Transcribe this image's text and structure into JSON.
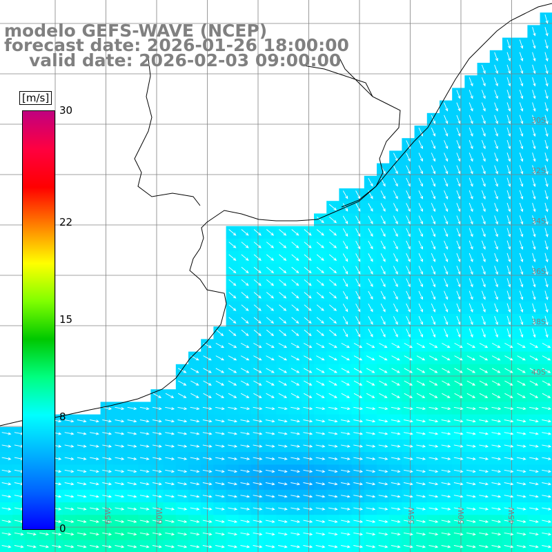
{
  "title": {
    "line1": "modelo GEFS-WAVE (NCEP)",
    "line2": "forecast date: 2026-01-26 18:00:00",
    "line3": "valid date: 2026-02-03 09:00:00"
  },
  "colorbar": {
    "unit": "[m/s]",
    "min": 0,
    "max": 30,
    "ticks": [
      {
        "value": 30,
        "label": "30"
      },
      {
        "value": 22,
        "label": "22"
      },
      {
        "value": 15,
        "label": "15"
      },
      {
        "value": 8,
        "label": "8"
      },
      {
        "value": 0,
        "label": "0"
      }
    ],
    "colors": [
      "#0000ff",
      "#0064ff",
      "#00b4ff",
      "#00ffff",
      "#00ff80",
      "#00c800",
      "#80ff00",
      "#ffff00",
      "#ff8000",
      "#ff0000",
      "#ff0040",
      "#c00080"
    ]
  },
  "map": {
    "variable": "wind speed and direction",
    "units": "m/s",
    "land_color": "#ffffff",
    "coast_color": "#000000",
    "grid_color": "#808080",
    "lat_labels": [
      "30S",
      "32S",
      "34S",
      "36S",
      "38S",
      "40S"
    ],
    "lon_labels": [
      "65W",
      "60W",
      "55W",
      "50W",
      "45W"
    ]
  }
}
